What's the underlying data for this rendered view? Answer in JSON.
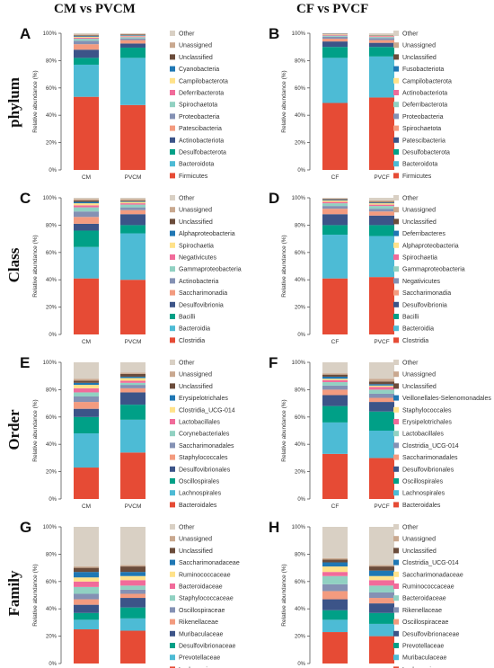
{
  "column_titles": [
    "CM vs PVCM",
    "CF vs PVCF"
  ],
  "row_labels": [
    "phylum",
    "Class",
    "Order",
    "Family"
  ],
  "ylabel": "Relative abundance (%)",
  "colors": [
    "#e64b35",
    "#4dbbd5",
    "#00a087",
    "#3c5488",
    "#f39b7f",
    "#8491b4",
    "#91d1c2",
    "#f16b9a",
    "#ffe28a",
    "#1f77b4",
    "#6b4c3b",
    "#c9a88f",
    "#d9d0c4"
  ],
  "chart_data": [
    {
      "panel": "A",
      "type": "bar",
      "stacked": true,
      "categories": [
        "CM",
        "PVCM"
      ],
      "ylim": [
        0,
        100
      ],
      "series": [
        {
          "name": "Firmicutes",
          "values": [
            53.5,
            47.5
          ]
        },
        {
          "name": "Bacteroidota",
          "values": [
            23.5,
            34.5
          ]
        },
        {
          "name": "Desulfobacterota",
          "values": [
            5.0,
            7.5
          ]
        },
        {
          "name": "Actinobacteriota",
          "values": [
            6.0,
            3.0
          ]
        },
        {
          "name": "Patescibacteria",
          "values": [
            4.0,
            2.5
          ]
        },
        {
          "name": "Proteobacteria",
          "values": [
            2.5,
            1.2
          ]
        },
        {
          "name": "Spirochaetota",
          "values": [
            1.5,
            1.0
          ]
        },
        {
          "name": "Deferribacterota",
          "values": [
            0.8,
            0.6
          ]
        },
        {
          "name": "Campilobacterota",
          "values": [
            0.6,
            0.4
          ]
        },
        {
          "name": "Cyanobacteria",
          "values": [
            0.5,
            0.4
          ]
        },
        {
          "name": "Unclassified",
          "values": [
            0.5,
            0.4
          ]
        },
        {
          "name": "Unassigned",
          "values": [
            0.6,
            0.5
          ]
        },
        {
          "name": "Other",
          "values": [
            1.0,
            0.5
          ]
        }
      ]
    },
    {
      "panel": "B",
      "type": "bar",
      "stacked": true,
      "categories": [
        "CF",
        "PVCF"
      ],
      "ylim": [
        0,
        100
      ],
      "series": [
        {
          "name": "Firmicutes",
          "values": [
            49,
            53
          ]
        },
        {
          "name": "Bacteroidota",
          "values": [
            33,
            30
          ]
        },
        {
          "name": "Desulfobacterota",
          "values": [
            8,
            7
          ]
        },
        {
          "name": "Patescibacteria",
          "values": [
            4,
            3
          ]
        },
        {
          "name": "Spirochaetota",
          "values": [
            2,
            2
          ]
        },
        {
          "name": "Proteobacteria",
          "values": [
            1.5,
            1.5
          ]
        },
        {
          "name": "Deferribacterota",
          "values": [
            0.8,
            0.8
          ]
        },
        {
          "name": "Actinobacteriota",
          "values": [
            0.6,
            0.6
          ]
        },
        {
          "name": "Campilobacterota",
          "values": [
            0.4,
            0.4
          ]
        },
        {
          "name": "Fusobacteriota",
          "values": [
            0.2,
            0.2
          ]
        },
        {
          "name": "Unclassified",
          "values": [
            0.2,
            0.2
          ]
        },
        {
          "name": "Unassigned",
          "values": [
            0.2,
            0.2
          ]
        },
        {
          "name": "Other",
          "values": [
            0.1,
            1.1
          ]
        }
      ]
    },
    {
      "panel": "C",
      "type": "bar",
      "stacked": true,
      "categories": [
        "CM",
        "PVCM"
      ],
      "ylim": [
        0,
        100
      ],
      "series": [
        {
          "name": "Clostridia",
          "values": [
            41,
            40
          ]
        },
        {
          "name": "Bacteroidia",
          "values": [
            23,
            34
          ]
        },
        {
          "name": "Bacilli",
          "values": [
            12,
            6
          ]
        },
        {
          "name": "Desulfovibrionia",
          "values": [
            5,
            8
          ]
        },
        {
          "name": "Saccharimonadia",
          "values": [
            5,
            3
          ]
        },
        {
          "name": "Actinobacteria",
          "values": [
            4,
            2
          ]
        },
        {
          "name": "Gammaproteobacteria",
          "values": [
            3,
            2
          ]
        },
        {
          "name": "Negativicutes",
          "values": [
            1.5,
            1
          ]
        },
        {
          "name": "Spirochaetia",
          "values": [
            1.5,
            1
          ]
        },
        {
          "name": "Alphaproteobacteria",
          "values": [
            1,
            0.5
          ]
        },
        {
          "name": "Unclassified",
          "values": [
            1,
            0.5
          ]
        },
        {
          "name": "Unassigned",
          "values": [
            1,
            1
          ]
        },
        {
          "name": "Other",
          "values": [
            1,
            1
          ]
        }
      ]
    },
    {
      "panel": "D",
      "type": "bar",
      "stacked": true,
      "categories": [
        "CF",
        "PVCF"
      ],
      "ylim": [
        0,
        100
      ],
      "series": [
        {
          "name": "Clostridia",
          "values": [
            41,
            42
          ]
        },
        {
          "name": "Bacteroidia",
          "values": [
            32,
            30
          ]
        },
        {
          "name": "Bacilli",
          "values": [
            7,
            8
          ]
        },
        {
          "name": "Desulfovibrionia",
          "values": [
            8,
            7
          ]
        },
        {
          "name": "Saccharimonadia",
          "values": [
            4,
            3
          ]
        },
        {
          "name": "Negativicutes",
          "values": [
            2,
            2
          ]
        },
        {
          "name": "Gammaproteobacteria",
          "values": [
            2,
            2
          ]
        },
        {
          "name": "Spirochaetia",
          "values": [
            1,
            1
          ]
        },
        {
          "name": "Alphaproteobacteria",
          "values": [
            1,
            1
          ]
        },
        {
          "name": "Deferribacteres",
          "values": [
            0.5,
            0.5
          ]
        },
        {
          "name": "Unclassified",
          "values": [
            0.5,
            0.5
          ]
        },
        {
          "name": "Unassigned",
          "values": [
            0.5,
            1
          ]
        },
        {
          "name": "Other",
          "values": [
            0.5,
            2
          ]
        }
      ]
    },
    {
      "panel": "E",
      "type": "bar",
      "stacked": true,
      "categories": [
        "CM",
        "PVCM"
      ],
      "ylim": [
        0,
        100
      ],
      "series": [
        {
          "name": "Bacteroidales",
          "values": [
            23,
            34
          ]
        },
        {
          "name": "Lachnospirales",
          "values": [
            25,
            24
          ]
        },
        {
          "name": "Oscillospirales",
          "values": [
            12,
            11
          ]
        },
        {
          "name": "Desulfovibrionales",
          "values": [
            6,
            9
          ]
        },
        {
          "name": "Staphylococcales",
          "values": [
            5,
            3
          ]
        },
        {
          "name": "Saccharimonadales",
          "values": [
            4,
            2.5
          ]
        },
        {
          "name": "Corynebacteriales",
          "values": [
            3,
            1.5
          ]
        },
        {
          "name": "Lactobacillales",
          "values": [
            3,
            1.5
          ]
        },
        {
          "name": "Clostridia_UCG-014",
          "values": [
            2.5,
            2
          ]
        },
        {
          "name": "Erysipelotrichales",
          "values": [
            1.5,
            1
          ]
        },
        {
          "name": "Unclassified",
          "values": [
            1.5,
            2
          ]
        },
        {
          "name": "Unassigned",
          "values": [
            1.5,
            1
          ]
        },
        {
          "name": "Other",
          "values": [
            12,
            7.5
          ]
        }
      ]
    },
    {
      "panel": "F",
      "type": "bar",
      "stacked": true,
      "categories": [
        "CF",
        "PVCF"
      ],
      "ylim": [
        0,
        100
      ],
      "series": [
        {
          "name": "Bacteroidales",
          "values": [
            33,
            30
          ]
        },
        {
          "name": "Lachnospirales",
          "values": [
            23,
            20
          ]
        },
        {
          "name": "Oscillospirales",
          "values": [
            12,
            14
          ]
        },
        {
          "name": "Desulfovibrionales",
          "values": [
            8,
            7
          ]
        },
        {
          "name": "Saccharimonadales",
          "values": [
            4,
            3
          ]
        },
        {
          "name": "Clostridia_UCG-014",
          "values": [
            3,
            3
          ]
        },
        {
          "name": "Lactobacillales",
          "values": [
            2.5,
            3
          ]
        },
        {
          "name": "Erysipelotrichales",
          "values": [
            1.5,
            2
          ]
        },
        {
          "name": "Staphylococcales",
          "values": [
            1,
            1
          ]
        },
        {
          "name": "Veillonellales-Selenomonadales",
          "values": [
            1.5,
            1
          ]
        },
        {
          "name": "Unclassified",
          "values": [
            1.5,
            2
          ]
        },
        {
          "name": "Unassigned",
          "values": [
            1,
            2
          ]
        },
        {
          "name": "Other",
          "values": [
            8,
            12
          ]
        }
      ]
    },
    {
      "panel": "G",
      "type": "bar",
      "stacked": true,
      "categories": [
        "CM",
        "PVCM"
      ],
      "ylim": [
        0,
        100
      ],
      "series": [
        {
          "name": "Lachnospiraceae",
          "values": [
            25,
            24
          ]
        },
        {
          "name": "Prevotellaceae",
          "values": [
            7,
            9
          ]
        },
        {
          "name": "Desulfovibrionaceae",
          "values": [
            5,
            8
          ]
        },
        {
          "name": "Muribaculaceae",
          "values": [
            6,
            7
          ]
        },
        {
          "name": "Rikenellaceae",
          "values": [
            4,
            3
          ]
        },
        {
          "name": "Oscillospiraceae",
          "values": [
            4,
            3
          ]
        },
        {
          "name": "Staphylococcaceae",
          "values": [
            5,
            3
          ]
        },
        {
          "name": "Bacteroidaceae",
          "values": [
            4,
            4
          ]
        },
        {
          "name": "Ruminococcaceae",
          "values": [
            3,
            3
          ]
        },
        {
          "name": "Saccharimonadaceae",
          "values": [
            4,
            3
          ]
        },
        {
          "name": "Unclassified",
          "values": [
            3,
            4
          ]
        },
        {
          "name": "Unassigned",
          "values": [
            1,
            1
          ]
        },
        {
          "name": "Other",
          "values": [
            29,
            28
          ]
        }
      ]
    },
    {
      "panel": "H",
      "type": "bar",
      "stacked": true,
      "categories": [
        "CF",
        "PVCF"
      ],
      "ylim": [
        0,
        100
      ],
      "series": [
        {
          "name": "Lachnospiraceae",
          "values": [
            23,
            20
          ]
        },
        {
          "name": "Muribaculaceae",
          "values": [
            9,
            9
          ]
        },
        {
          "name": "Prevotellaceae",
          "values": [
            7,
            8
          ]
        },
        {
          "name": "Desulfovibrionaceae",
          "values": [
            8,
            7
          ]
        },
        {
          "name": "Oscillospiraceae",
          "values": [
            6,
            4
          ]
        },
        {
          "name": "Rikenellaceae",
          "values": [
            5,
            4
          ]
        },
        {
          "name": "Bacteroidaceae",
          "values": [
            6,
            5
          ]
        },
        {
          "name": "Ruminococcaceae",
          "values": [
            3,
            4
          ]
        },
        {
          "name": "Saccharimonadaceae",
          "values": [
            4,
            3
          ]
        },
        {
          "name": "Clostridia_UCG-014",
          "values": [
            3,
            4
          ]
        },
        {
          "name": "Unclassified",
          "values": [
            2,
            3
          ]
        },
        {
          "name": "Unassigned",
          "values": [
            1,
            1
          ]
        },
        {
          "name": "Other",
          "values": [
            23,
            28
          ]
        }
      ]
    }
  ]
}
